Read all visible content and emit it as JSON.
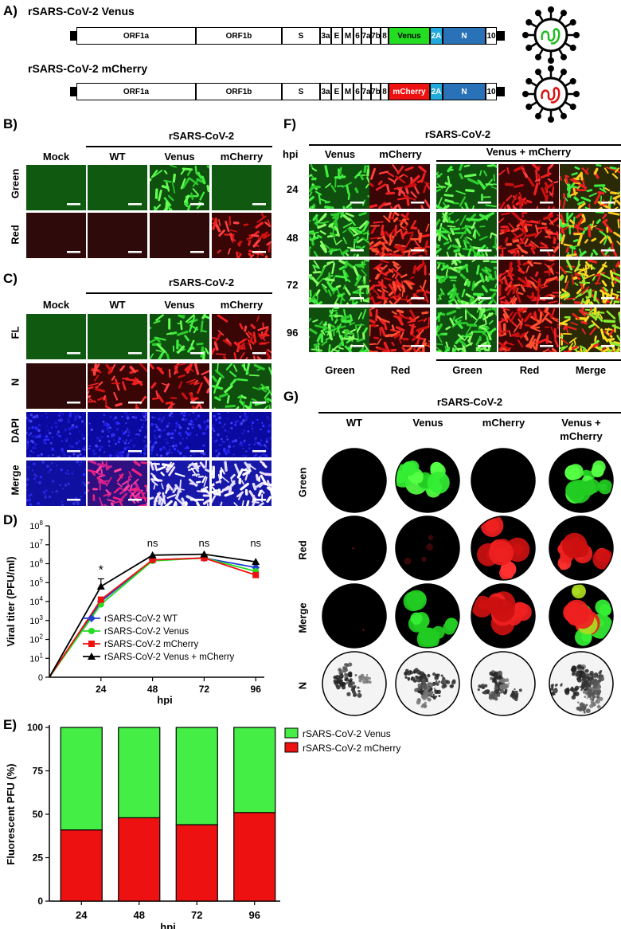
{
  "panel_letters": {
    "A": "A)",
    "B": "B)",
    "C": "C)",
    "D": "D)",
    "E": "E)",
    "F": "F)",
    "G": "G)"
  },
  "panelA": {
    "constructs": [
      {
        "name": "rSARS-CoV-2 Venus",
        "reporter": "Venus",
        "reporter_color": "#22dd22",
        "genome_color": "#22bb22"
      },
      {
        "name": "rSARS-CoV-2 mCherry",
        "reporter": "mCherry",
        "reporter_color": "#ee1111",
        "genome_color": "#dd1111"
      }
    ],
    "genes": [
      "ORF1a",
      "ORF1b",
      "S",
      "3a",
      "E",
      "M",
      "6",
      "7a",
      "7b",
      "8",
      "2A",
      "N",
      "10"
    ],
    "tag_color_2a": "#22aadd",
    "n_color": "#2a72b8"
  },
  "panelB": {
    "header": "rSARS-CoV-2",
    "columns": [
      "Mock",
      "WT",
      "Venus",
      "mCherry"
    ],
    "rows": [
      "Green",
      "Red"
    ]
  },
  "panelC": {
    "header": "rSARS-CoV-2",
    "columns": [
      "Mock",
      "WT",
      "Venus",
      "mCherry"
    ],
    "rows": [
      "FL",
      "N",
      "DAPI",
      "Merge"
    ]
  },
  "panelF": {
    "header": "rSARS-CoV-2",
    "hpi_label": "hpi",
    "columns": [
      "Venus",
      "mCherry"
    ],
    "group_label": "Venus + mCherry",
    "rows": [
      "24",
      "48",
      "72",
      "96"
    ],
    "bottom_labels": [
      "Green",
      "Red",
      "Green",
      "Red",
      "Merge"
    ]
  },
  "panelG": {
    "header": "rSARS-CoV-2",
    "columns": [
      "WT",
      "Venus",
      "mCherry",
      "Venus +\nmCherry"
    ],
    "col1": "WT",
    "col2": "Venus",
    "col3": "mCherry",
    "col4a": "Venus +",
    "col4b": "mCherry",
    "rows": [
      "Green",
      "Red",
      "Merge",
      "N"
    ]
  },
  "chart_data": [
    {
      "panel": "D",
      "type": "line",
      "xlabel": "hpi",
      "ylabel": "Viral titer (PFU/ml)",
      "x": [
        0,
        24,
        48,
        72,
        96
      ],
      "x_ticks": [
        "24",
        "48",
        "72",
        "96"
      ],
      "y_scale": "log10",
      "y_ticks": [
        "0",
        "10^1",
        "10^2",
        "10^3",
        "10^4",
        "10^5",
        "10^6",
        "10^7",
        "10^8"
      ],
      "ylim": [
        0,
        8
      ],
      "annotations": [
        {
          "x": 24,
          "text": "*"
        },
        {
          "x": 48,
          "text": "ns"
        },
        {
          "x": 72,
          "text": "ns"
        },
        {
          "x": 96,
          "text": "ns"
        }
      ],
      "legend_position": "bottom-right",
      "series": [
        {
          "name": "rSARS-CoV-2 WT",
          "color": "#1f3fcf",
          "marker": "diamond",
          "log10_values": [
            0,
            4.0,
            6.2,
            6.3,
            5.8
          ]
        },
        {
          "name": "rSARS-CoV-2 Venus",
          "color": "#22dd22",
          "marker": "circle",
          "log10_values": [
            0,
            3.85,
            6.15,
            6.3,
            5.6
          ]
        },
        {
          "name": "rSARS-CoV-2 mCherry",
          "color": "#ee1111",
          "marker": "square",
          "log10_values": [
            0,
            4.1,
            6.2,
            6.3,
            5.4
          ]
        },
        {
          "name": "rSARS-CoV-2 Venus + mCherry",
          "color": "#000000",
          "marker": "triangle",
          "log10_values": [
            0,
            4.8,
            6.45,
            6.5,
            6.1
          ]
        }
      ]
    },
    {
      "panel": "E",
      "type": "bar",
      "stacked": true,
      "xlabel": "hpi",
      "ylabel": "Fluorescent PFU (%)",
      "categories": [
        "24",
        "48",
        "72",
        "96"
      ],
      "ylim": [
        0,
        100
      ],
      "y_ticks": [
        "0",
        "25",
        "50",
        "75",
        "100"
      ],
      "legend_position": "right",
      "series": [
        {
          "name": "rSARS-CoV-2 Venus",
          "color": "#44ee44",
          "values": [
            59,
            52,
            56,
            49
          ]
        },
        {
          "name": "rSARS-CoV-2 mCherry",
          "color": "#ee1111",
          "values": [
            41,
            48,
            44,
            51
          ]
        }
      ]
    }
  ]
}
